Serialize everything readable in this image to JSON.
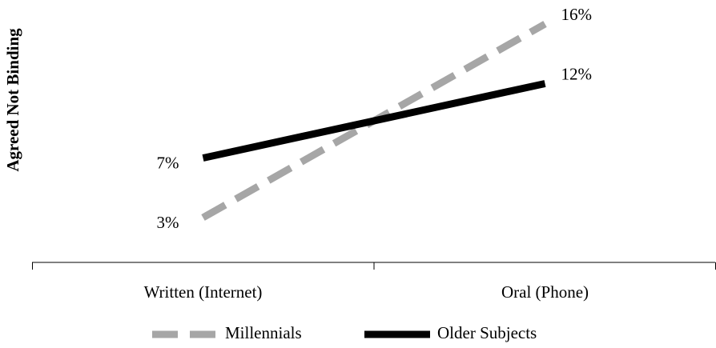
{
  "chart_data": {
    "type": "line",
    "y_label": "Agreed Not Binding",
    "categories": [
      "Written (Internet)",
      "Oral (Phone)"
    ],
    "series": [
      {
        "name": "Millennials",
        "color": "#a6a6a6",
        "dashed": true,
        "values": [
          3,
          16
        ],
        "value_labels": [
          "3%",
          "16%"
        ]
      },
      {
        "name": "Older Subjects",
        "color": "#000000",
        "dashed": false,
        "values": [
          7,
          12
        ],
        "value_labels": [
          "7%",
          "12%"
        ]
      }
    ]
  }
}
